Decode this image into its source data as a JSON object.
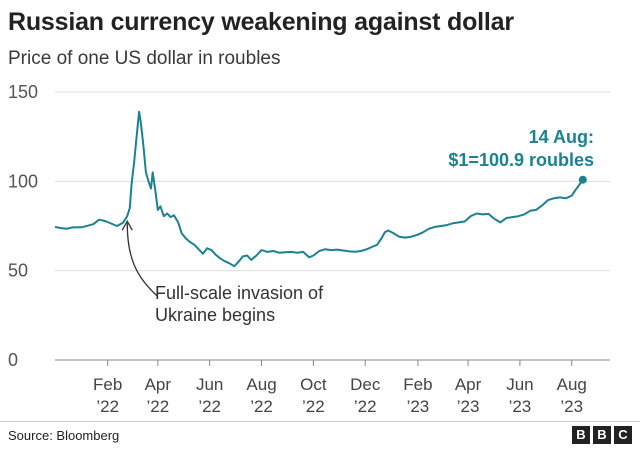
{
  "chart_data": {
    "type": "line",
    "title": "Russian currency weakening against dollar",
    "subtitle": "Price of one US dollar in roubles",
    "ylim": [
      0,
      150
    ],
    "yticks": [
      0,
      50,
      100,
      150
    ],
    "xlim": [
      "2021-12-01",
      "2023-09-15"
    ],
    "xticks": [
      {
        "date": "2022-02-01",
        "label1": "Feb",
        "label2": "’22"
      },
      {
        "date": "2022-04-01",
        "label1": "Apr",
        "label2": "’22"
      },
      {
        "date": "2022-06-01",
        "label1": "Jun",
        "label2": "’22"
      },
      {
        "date": "2022-08-01",
        "label1": "Aug",
        "label2": "’22"
      },
      {
        "date": "2022-10-01",
        "label1": "Oct",
        "label2": "’22"
      },
      {
        "date": "2022-12-01",
        "label1": "Dec",
        "label2": "’22"
      },
      {
        "date": "2023-02-01",
        "label1": "Feb",
        "label2": "’23"
      },
      {
        "date": "2023-04-01",
        "label1": "Apr",
        "label2": "’23"
      },
      {
        "date": "2023-06-01",
        "label1": "Jun",
        "label2": "’23"
      },
      {
        "date": "2023-08-01",
        "label1": "Aug",
        "label2": "’23"
      }
    ],
    "series": [
      {
        "name": "USD/RUB",
        "color": "#1a8291",
        "points": [
          [
            "2021-12-01",
            74.5
          ],
          [
            "2021-12-08",
            73.8
          ],
          [
            "2021-12-15",
            73.5
          ],
          [
            "2021-12-22",
            74.2
          ],
          [
            "2022-01-01",
            74.3
          ],
          [
            "2022-01-08",
            75.1
          ],
          [
            "2022-01-15",
            76.0
          ],
          [
            "2022-01-22",
            78.5
          ],
          [
            "2022-01-29",
            77.8
          ],
          [
            "2022-02-05",
            76.4
          ],
          [
            "2022-02-12",
            75.0
          ],
          [
            "2022-02-19",
            76.8
          ],
          [
            "2022-02-24",
            80.5
          ],
          [
            "2022-02-27",
            85.0
          ],
          [
            "2022-03-01",
            98.0
          ],
          [
            "2022-03-04",
            110.0
          ],
          [
            "2022-03-07",
            125.0
          ],
          [
            "2022-03-10",
            139.0
          ],
          [
            "2022-03-12",
            133.0
          ],
          [
            "2022-03-15",
            120.0
          ],
          [
            "2022-03-18",
            105.0
          ],
          [
            "2022-03-21",
            100.0
          ],
          [
            "2022-03-24",
            96.0
          ],
          [
            "2022-03-26",
            105.0
          ],
          [
            "2022-03-29",
            95.0
          ],
          [
            "2022-04-01",
            84.0
          ],
          [
            "2022-04-04",
            86.0
          ],
          [
            "2022-04-08",
            80.5
          ],
          [
            "2022-04-12",
            82.0
          ],
          [
            "2022-04-16",
            80.0
          ],
          [
            "2022-04-20",
            81.0
          ],
          [
            "2022-04-25",
            77.0
          ],
          [
            "2022-04-29",
            71.0
          ],
          [
            "2022-05-04",
            68.0
          ],
          [
            "2022-05-09",
            66.0
          ],
          [
            "2022-05-14",
            64.5
          ],
          [
            "2022-05-19",
            62.0
          ],
          [
            "2022-05-24",
            59.5
          ],
          [
            "2022-05-29",
            62.5
          ],
          [
            "2022-06-03",
            61.5
          ],
          [
            "2022-06-08",
            59.0
          ],
          [
            "2022-06-13",
            57.0
          ],
          [
            "2022-06-18",
            55.5
          ],
          [
            "2022-06-24",
            54.2
          ],
          [
            "2022-06-30",
            52.5
          ],
          [
            "2022-07-05",
            55.0
          ],
          [
            "2022-07-10",
            58.0
          ],
          [
            "2022-07-15",
            58.5
          ],
          [
            "2022-07-20",
            56.0
          ],
          [
            "2022-07-26",
            58.5
          ],
          [
            "2022-08-01",
            61.5
          ],
          [
            "2022-08-08",
            60.5
          ],
          [
            "2022-08-15",
            61.0
          ],
          [
            "2022-08-22",
            60.0
          ],
          [
            "2022-08-29",
            60.3
          ],
          [
            "2022-09-05",
            60.5
          ],
          [
            "2022-09-12",
            60.0
          ],
          [
            "2022-09-19",
            60.5
          ],
          [
            "2022-09-26",
            57.5
          ],
          [
            "2022-10-01",
            58.5
          ],
          [
            "2022-10-08",
            61.0
          ],
          [
            "2022-10-15",
            62.0
          ],
          [
            "2022-10-22",
            61.5
          ],
          [
            "2022-10-29",
            61.8
          ],
          [
            "2022-11-05",
            61.3
          ],
          [
            "2022-11-12",
            60.8
          ],
          [
            "2022-11-19",
            60.6
          ],
          [
            "2022-11-26",
            61.0
          ],
          [
            "2022-12-03",
            62.0
          ],
          [
            "2022-12-10",
            63.5
          ],
          [
            "2022-12-15",
            64.5
          ],
          [
            "2022-12-20",
            68.0
          ],
          [
            "2022-12-24",
            71.5
          ],
          [
            "2022-12-28",
            72.5
          ],
          [
            "2023-01-03",
            71.0
          ],
          [
            "2023-01-10",
            69.0
          ],
          [
            "2023-01-17",
            68.5
          ],
          [
            "2023-01-24",
            69.0
          ],
          [
            "2023-01-31",
            70.0
          ],
          [
            "2023-02-07",
            71.5
          ],
          [
            "2023-02-14",
            73.5
          ],
          [
            "2023-02-21",
            74.5
          ],
          [
            "2023-02-28",
            75.0
          ],
          [
            "2023-03-07",
            75.5
          ],
          [
            "2023-03-14",
            76.5
          ],
          [
            "2023-03-21",
            77.0
          ],
          [
            "2023-03-28",
            77.5
          ],
          [
            "2023-04-04",
            80.5
          ],
          [
            "2023-04-11",
            82.0
          ],
          [
            "2023-04-18",
            81.5
          ],
          [
            "2023-04-25",
            81.8
          ],
          [
            "2023-05-02",
            79.0
          ],
          [
            "2023-05-09",
            77.0
          ],
          [
            "2023-05-16",
            79.5
          ],
          [
            "2023-05-23",
            80.0
          ],
          [
            "2023-05-30",
            80.5
          ],
          [
            "2023-06-06",
            81.5
          ],
          [
            "2023-06-13",
            83.5
          ],
          [
            "2023-06-20",
            84.0
          ],
          [
            "2023-06-27",
            86.5
          ],
          [
            "2023-07-04",
            89.5
          ],
          [
            "2023-07-11",
            90.5
          ],
          [
            "2023-07-18",
            91.0
          ],
          [
            "2023-07-25",
            90.5
          ],
          [
            "2023-08-01",
            92.0
          ],
          [
            "2023-08-05",
            95.0
          ],
          [
            "2023-08-09",
            97.5
          ],
          [
            "2023-08-14",
            100.9
          ]
        ]
      }
    ],
    "annotations": [
      {
        "date": "2022-02-24",
        "value": 80.5,
        "lines": [
          "Full-scale invasion of",
          "Ukraine begins"
        ]
      },
      {
        "date": "2023-08-14",
        "value": 100.9,
        "lines": [
          "14 Aug:",
          "$1=100.9 roubles"
        ]
      }
    ],
    "grid": true
  },
  "colors": {
    "line": "#1a8291",
    "grid": "#dddddd",
    "axis": "#888888",
    "text": "#222222"
  },
  "footer": {
    "source": "Source: Bloomberg",
    "logo": [
      "B",
      "B",
      "C"
    ]
  }
}
